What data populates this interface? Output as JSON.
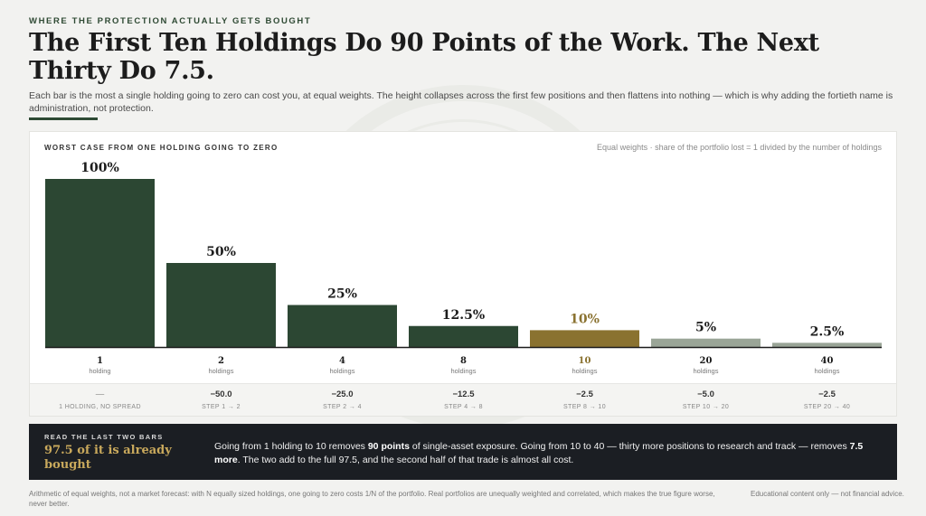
{
  "eyebrow": "WHERE THE PROTECTION ACTUALLY GETS BOUGHT",
  "title": "The First Ten Holdings Do 90 Points of the Work. The Next Thirty Do 7.5.",
  "subtitle": "Each bar is the most a single holding going to zero can cost you, at equal weights. The height collapses across the first few positions and then flattens into nothing — which is why adding the fortieth name is administration, not protection.",
  "panel": {
    "heading": "WORST CASE FROM ONE HOLDING GOING TO ZERO",
    "note": "Equal weights · share of the portfolio lost = 1 divided by the number of holdings"
  },
  "colors": {
    "primary": "#2c4733",
    "accent": "#8a7230",
    "muted": "#9aa597"
  },
  "chart_data": {
    "type": "bar",
    "title": "WORST CASE FROM ONE HOLDING GOING TO ZERO",
    "ylim": [
      0,
      100
    ],
    "categories": [
      "1",
      "2",
      "4",
      "8",
      "10",
      "20",
      "40"
    ],
    "category_sublabels": [
      "holding",
      "holdings",
      "holdings",
      "holdings",
      "holdings",
      "holdings",
      "holdings"
    ],
    "values": [
      100,
      50,
      25,
      12.5,
      10,
      5,
      2.5
    ],
    "value_labels": [
      "100%",
      "50%",
      "25%",
      "12.5%",
      "10%",
      "5%",
      "2.5%"
    ],
    "bar_styles": [
      "primary",
      "primary",
      "primary",
      "primary",
      "accent",
      "muted",
      "muted"
    ],
    "step_values": [
      "—",
      "−50.0",
      "−25.0",
      "−12.5",
      "−2.5",
      "−5.0",
      "−2.5"
    ],
    "step_labels": [
      "1 HOLDING, NO SPREAD",
      "STEP 1 → 2",
      "STEP 2 → 4",
      "STEP 4 → 8",
      "STEP 8 → 10",
      "STEP 10 → 20",
      "STEP 20 → 40"
    ],
    "grid": false
  },
  "callout": {
    "eyebrow": "READ THE LAST TWO BARS",
    "headline": "97.5 of it is already bought",
    "body_1": "Going from 1 holding to 10 removes ",
    "body_bold_1": "90 points",
    "body_2": " of single-asset exposure. Going from 10 to 40 — thirty more positions to research and track — removes ",
    "body_bold_2": "7.5 more",
    "body_3": ". The two add to the full 97.5, and the second half of that trade is almost all cost."
  },
  "footer": {
    "left": "Arithmetic of equal weights, not a market forecast: with N equally sized holdings, one going to zero costs 1/N of the portfolio. Real portfolios are unequally weighted and correlated, which makes the true figure worse, never better.",
    "right": "Educational content only — not financial advice."
  }
}
